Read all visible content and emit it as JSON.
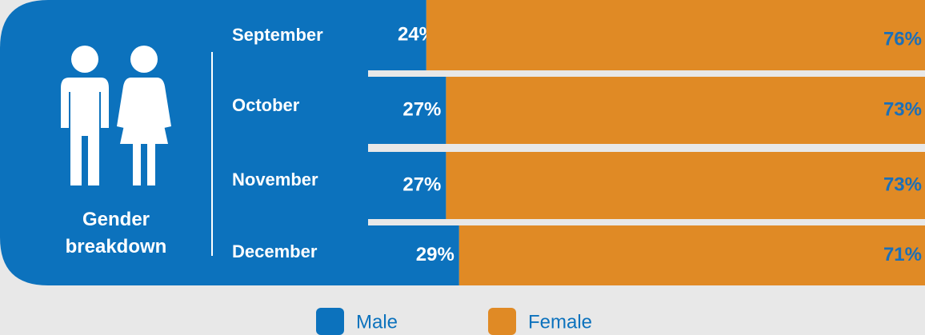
{
  "chart_data": {
    "type": "bar",
    "orientation": "horizontal",
    "stacked": true,
    "title": "Gender breakdown",
    "categories": [
      "September",
      "October",
      "November",
      "December"
    ],
    "series": [
      {
        "name": "Male",
        "color": "#0c72bd",
        "values": [
          24,
          27,
          27,
          29
        ],
        "value_labels": [
          "24%",
          "27%",
          "27%",
          "29%"
        ]
      },
      {
        "name": "Female",
        "color": "#e08a25",
        "values": [
          76,
          73,
          73,
          71
        ],
        "value_labels": [
          "76%",
          "73%",
          "73%",
          "71%"
        ]
      }
    ],
    "xlim": [
      0,
      100
    ],
    "legend": "bottom"
  }
}
